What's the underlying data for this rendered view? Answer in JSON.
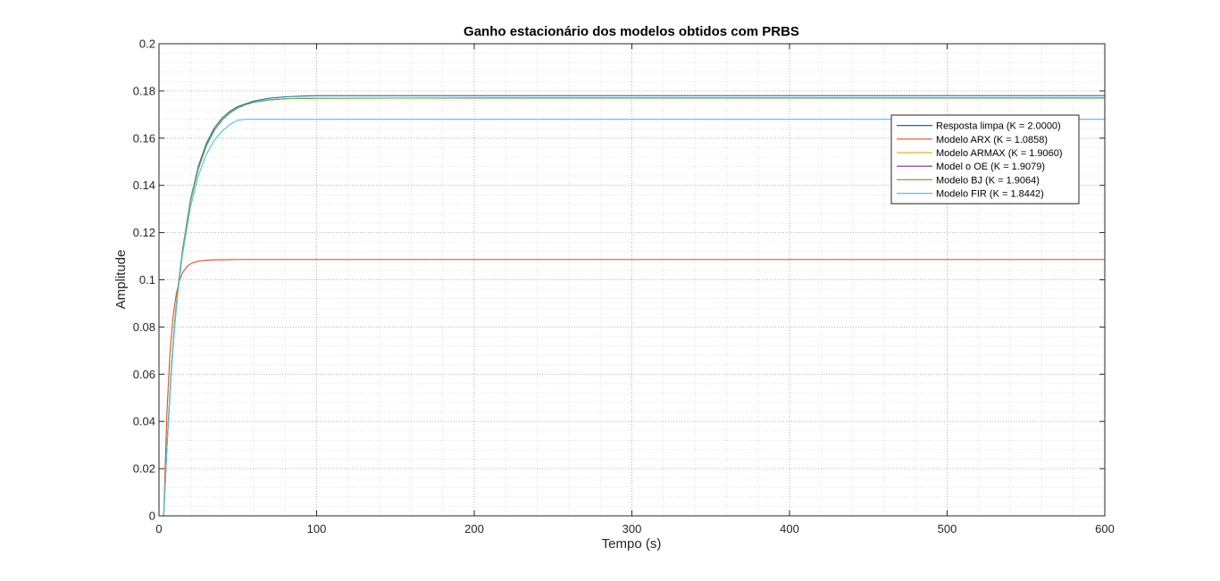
{
  "chart_data": {
    "type": "line",
    "title": "Ganho estacionário dos modelos obtidos com PRBS",
    "xlabel": "Tempo (s)",
    "ylabel": "Amplitude",
    "xlim": [
      0,
      600
    ],
    "ylim": [
      0,
      0.2
    ],
    "xticks": [
      0,
      100,
      200,
      300,
      400,
      500,
      600
    ],
    "xtick_labels": [
      "0",
      "100",
      "200",
      "300",
      "400",
      "500",
      "600"
    ],
    "yticks": [
      0,
      0.02,
      0.04,
      0.06,
      0.08,
      0.1,
      0.12,
      0.14,
      0.16,
      0.18,
      0.2
    ],
    "ytick_labels": [
      "0",
      "0.02",
      "0.04",
      "0.06",
      "0.08",
      "0.1",
      "0.12",
      "0.14",
      "0.16",
      "0.18",
      "0.2"
    ],
    "grid": "major and minor (dotted)",
    "legend_position": "right",
    "series": [
      {
        "name": "Resposta limpa (K = 2.0000)",
        "color": "#0072BD",
        "x": [
          3,
          5,
          8,
          10,
          12,
          15,
          20,
          25,
          30,
          35,
          40,
          45,
          50,
          60,
          70,
          80,
          90,
          100,
          150,
          200,
          300,
          400,
          500,
          600
        ],
        "y": [
          0,
          0.0286,
          0.0632,
          0.0811,
          0.0954,
          0.1128,
          0.134,
          0.1482,
          0.1577,
          0.1642,
          0.1685,
          0.1714,
          0.1734,
          0.1757,
          0.1769,
          0.1775,
          0.1778,
          0.178,
          0.178,
          0.178,
          0.178,
          0.178,
          0.178,
          0.178
        ]
      },
      {
        "name": "Modelo ARX (K = 1.0858)",
        "color": "#D95319",
        "x": [
          3,
          5,
          7,
          9,
          11,
          13,
          15,
          18,
          21,
          25,
          30,
          35,
          40,
          50,
          100,
          200,
          300,
          400,
          500,
          600
        ],
        "y": [
          0,
          0.0432,
          0.0692,
          0.0847,
          0.0941,
          0.0997,
          0.1031,
          0.1058,
          0.1071,
          0.1079,
          0.1083,
          0.1085,
          0.1085,
          0.1086,
          0.1086,
          0.1086,
          0.1086,
          0.1086,
          0.1086,
          0.1086
        ]
      },
      {
        "name": "Modelo ARMAX (K = 1.9060)",
        "color": "#EDB120",
        "x": [
          3,
          5,
          8,
          10,
          12,
          15,
          20,
          25,
          30,
          35,
          40,
          45,
          50,
          55,
          60,
          70,
          80,
          100,
          200,
          300,
          400,
          500,
          600
        ],
        "y": [
          0,
          0.0289,
          0.0641,
          0.0821,
          0.0962,
          0.1129,
          0.1333,
          0.1471,
          0.1566,
          0.1632,
          0.1676,
          0.1707,
          0.1728,
          0.1742,
          0.1752,
          0.1762,
          0.1767,
          0.1769,
          0.177,
          0.177,
          0.177,
          0.177,
          0.177
        ]
      },
      {
        "name": "Model  o OE (K = 1.9079)",
        "color": "#7E2F8E",
        "x": [
          3,
          5,
          8,
          10,
          12,
          15,
          20,
          25,
          30,
          35,
          40,
          45,
          50,
          55,
          60,
          70,
          80,
          100,
          200,
          300,
          400,
          500,
          600
        ],
        "y": [
          0,
          0.0289,
          0.0641,
          0.0821,
          0.0962,
          0.1129,
          0.1333,
          0.1471,
          0.1566,
          0.1632,
          0.1676,
          0.1707,
          0.1728,
          0.1742,
          0.1752,
          0.1762,
          0.1767,
          0.1769,
          0.177,
          0.177,
          0.177,
          0.177,
          0.177
        ]
      },
      {
        "name": "Modelo BJ (K = 1.9064)",
        "color": "#77AC30",
        "x": [
          3,
          5,
          8,
          10,
          12,
          15,
          20,
          25,
          30,
          35,
          40,
          45,
          50,
          55,
          60,
          70,
          80,
          100,
          200,
          300,
          400,
          500,
          600
        ],
        "y": [
          0,
          0.0289,
          0.0641,
          0.0821,
          0.0962,
          0.1129,
          0.1333,
          0.1471,
          0.1566,
          0.1632,
          0.1676,
          0.1707,
          0.1728,
          0.1742,
          0.1752,
          0.1762,
          0.1767,
          0.1769,
          0.177,
          0.177,
          0.177,
          0.177,
          0.177
        ]
      },
      {
        "name": "Modelo FIR (K = 1.8442)",
        "color": "#4DBEEE",
        "x": [
          3,
          5,
          8,
          10,
          12,
          15,
          20,
          25,
          30,
          35,
          40,
          45,
          50,
          55,
          60,
          100,
          200,
          300,
          400,
          500,
          600
        ],
        "y": [
          0,
          0.0286,
          0.0629,
          0.0806,
          0.0946,
          0.111,
          0.1308,
          0.1441,
          0.153,
          0.159,
          0.163,
          0.1658,
          0.1676,
          0.168,
          0.168,
          0.168,
          0.168,
          0.168,
          0.168,
          0.168,
          0.168
        ]
      }
    ]
  }
}
